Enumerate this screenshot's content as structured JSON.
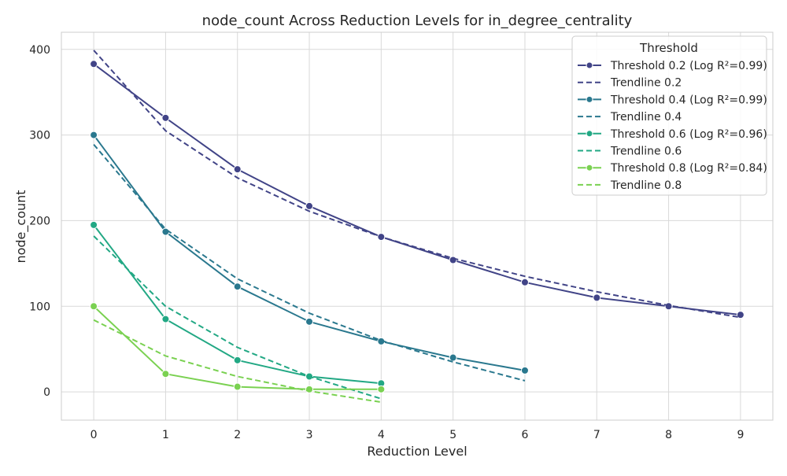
{
  "chart_data": {
    "type": "line",
    "title": "node_count Across Reduction Levels for in_degree_centrality",
    "xlabel": "Reduction Level",
    "ylabel": "node_count",
    "x_ticks": [
      0,
      1,
      2,
      3,
      4,
      5,
      6,
      7,
      8,
      9
    ],
    "y_ticks": [
      0,
      100,
      200,
      300,
      400
    ],
    "xlim": [
      -0.45,
      9.45
    ],
    "ylim": [
      -33,
      420
    ],
    "grid": true,
    "legend": {
      "title": "Threshold",
      "placement": "top-right"
    },
    "series": [
      {
        "name": "Threshold 0.2 (Log R²=0.99)",
        "color": "#414487",
        "style": "solid-markers",
        "x": [
          0,
          1,
          2,
          3,
          4,
          5,
          6,
          7,
          8,
          9
        ],
        "y": [
          383,
          320,
          260,
          217,
          181,
          154,
          128,
          110,
          100,
          90
        ]
      },
      {
        "name": "Trendline 0.2",
        "color": "#414487",
        "style": "dashed",
        "x": [
          0,
          1,
          2,
          3,
          4,
          5,
          6,
          7,
          8,
          9
        ],
        "y": [
          399,
          305,
          250,
          211,
          181,
          156,
          135,
          117,
          101,
          87
        ]
      },
      {
        "name": "Threshold 0.4 (Log R²=0.99)",
        "color": "#2a788e",
        "style": "solid-markers",
        "x": [
          0,
          1,
          2,
          3,
          4,
          5,
          6
        ],
        "y": [
          300,
          187,
          123,
          82,
          59,
          40,
          25
        ]
      },
      {
        "name": "Trendline 0.4",
        "color": "#2a788e",
        "style": "dashed",
        "x": [
          0,
          1,
          2,
          3,
          4,
          5,
          6
        ],
        "y": [
          289,
          190,
          132,
          92,
          60,
          35,
          13
        ]
      },
      {
        "name": "Threshold 0.6 (Log R²=0.96)",
        "color": "#22a884",
        "style": "solid-markers",
        "x": [
          0,
          1,
          2,
          3,
          4
        ],
        "y": [
          195,
          85,
          37,
          18,
          10
        ]
      },
      {
        "name": "Trendline 0.6",
        "color": "#22a884",
        "style": "dashed",
        "x": [
          0,
          1,
          2,
          3,
          4
        ],
        "y": [
          182,
          100,
          52,
          18,
          -8
        ]
      },
      {
        "name": "Threshold 0.8 (Log R²=0.84)",
        "color": "#7ad151",
        "style": "solid-markers",
        "x": [
          0,
          1,
          2,
          3,
          4
        ],
        "y": [
          100,
          21,
          6,
          3,
          3
        ]
      },
      {
        "name": "Trendline 0.8",
        "color": "#7ad151",
        "style": "dashed",
        "x": [
          0,
          1,
          2,
          3,
          4
        ],
        "y": [
          84,
          42,
          18,
          1,
          -12
        ]
      }
    ]
  }
}
